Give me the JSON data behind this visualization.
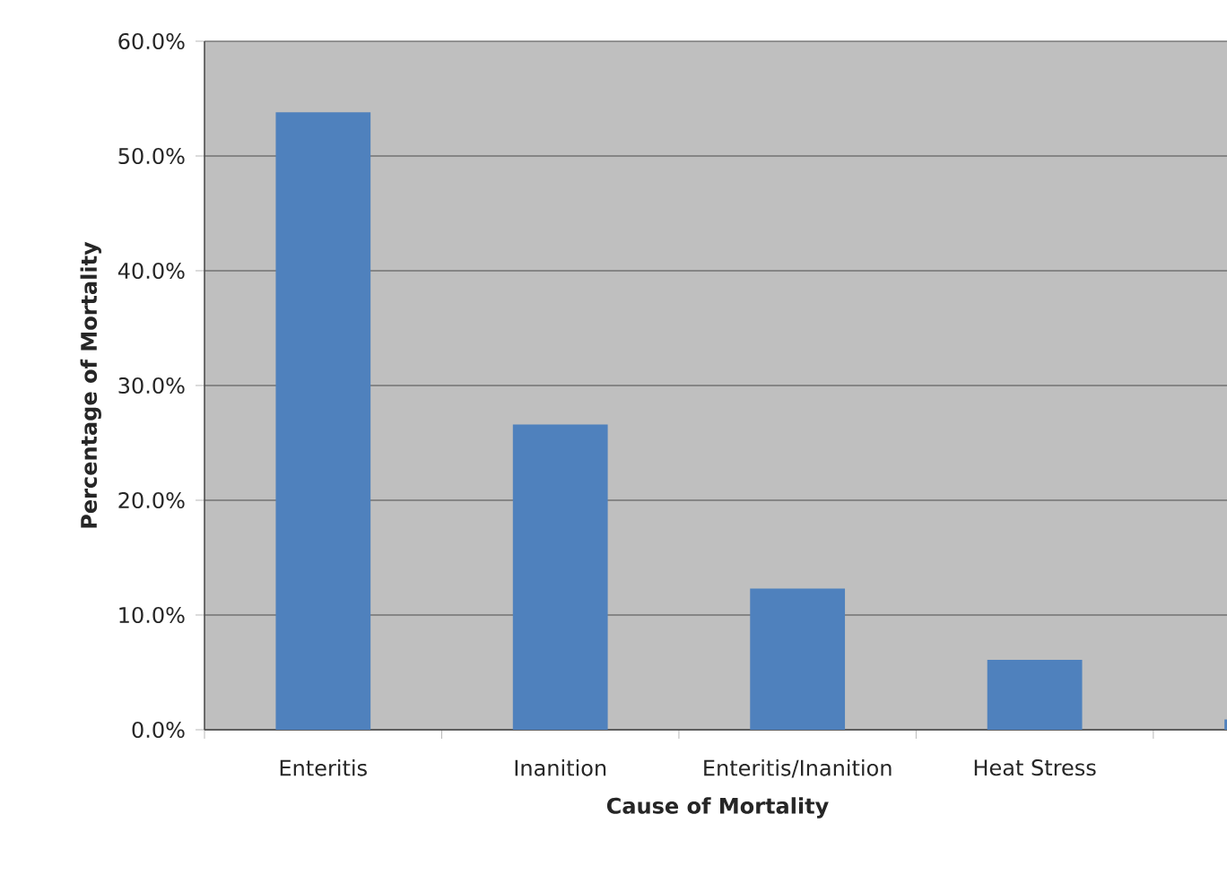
{
  "chart_data": {
    "type": "bar",
    "xlabel": "Cause of Mortality",
    "ylabel": "Percentage of Mortality",
    "categories": [
      "Enteritis",
      "Inanition",
      "Enteritis/Inanition",
      "Heat Stress",
      null
    ],
    "values": [
      53.8,
      26.6,
      12.3,
      6.1,
      0.9
    ],
    "color": "#4f81bd",
    "ylim": [
      0,
      60
    ],
    "yticks": [
      {
        "value": 0,
        "label": "0.0%"
      },
      {
        "value": 10,
        "label": "10.0%"
      },
      {
        "value": 20,
        "label": "20.0%"
      },
      {
        "value": 30,
        "label": "30.0%"
      },
      {
        "value": 40,
        "label": "40.0%"
      },
      {
        "value": 50,
        "label": "50.0%"
      },
      {
        "value": 60,
        "label": "60.0%"
      }
    ],
    "grid": "y"
  }
}
